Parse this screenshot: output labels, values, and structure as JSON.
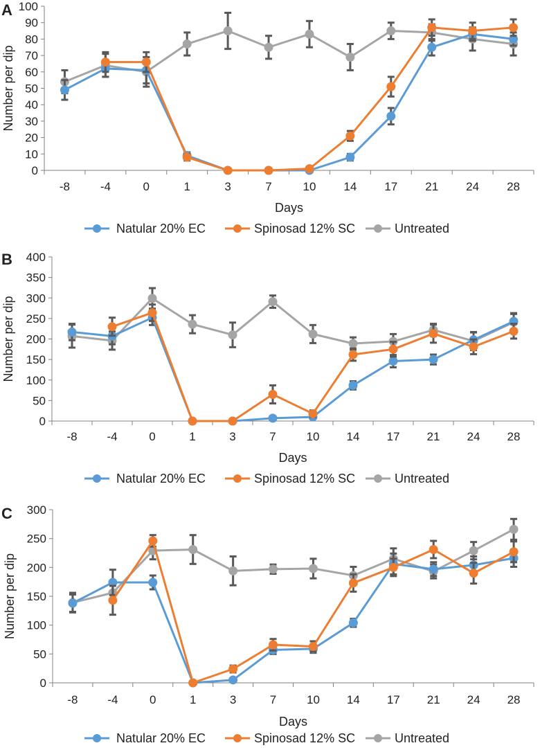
{
  "colors": {
    "blue": "#5B9BD5",
    "orange": "#ED7D31",
    "gray": "#A5A5A5",
    "error_bar": "#595959",
    "axis": "#808080"
  },
  "chart_data": [
    {
      "panel_label": "A",
      "type": "line",
      "categories": [
        "-8",
        "-4",
        "0",
        "1",
        "3",
        "7",
        "10",
        "14",
        "17",
        "21",
        "24",
        "28"
      ],
      "xlabel": "Days",
      "ylabel": "Number per dip",
      "ylim": [
        0,
        100
      ],
      "yticks": [
        0,
        10,
        20,
        30,
        40,
        50,
        60,
        70,
        80,
        90,
        100
      ],
      "legend": "bottom",
      "series": [
        {
          "name": "Natular 20% EC",
          "color": "#5B9BD5",
          "values": [
            49,
            62,
            61,
            9,
            0,
            0,
            0,
            8,
            33,
            75,
            83,
            80
          ],
          "errors": [
            6,
            5,
            8,
            2,
            0,
            0,
            1,
            2,
            5,
            5,
            4,
            4
          ]
        },
        {
          "name": "Spinosad 12% SC",
          "color": "#ED7D31",
          "values": [
            null,
            66,
            66,
            8,
            0,
            0,
            1,
            21,
            51,
            87,
            85,
            87
          ],
          "errors": [
            null,
            6,
            6,
            2,
            0,
            0,
            1,
            3,
            6,
            5,
            5,
            5
          ]
        },
        {
          "name": "Untreated",
          "color": "#A5A5A5",
          "values": [
            54,
            64,
            60,
            77,
            85,
            75,
            83,
            69,
            85,
            84,
            80,
            77
          ],
          "errors": [
            7,
            7,
            9,
            7,
            11,
            7,
            8,
            8,
            5,
            5,
            7,
            7
          ]
        }
      ]
    },
    {
      "panel_label": "B",
      "type": "line",
      "categories": [
        "-8",
        "-4",
        "0",
        "1",
        "3",
        "7",
        "10",
        "14",
        "17",
        "21",
        "24",
        "28"
      ],
      "xlabel": "Days",
      "ylabel": "Number per dip",
      "ylim": [
        0,
        400
      ],
      "yticks": [
        0,
        50,
        100,
        150,
        200,
        250,
        300,
        350,
        400
      ],
      "legend": "bottom",
      "series": [
        {
          "name": "Natular 20% EC",
          "color": "#5B9BD5",
          "values": [
            217,
            207,
            252,
            0,
            0,
            7,
            10,
            87,
            146,
            150,
            198,
            243
          ],
          "errors": [
            20,
            20,
            18,
            0,
            0,
            3,
            4,
            10,
            15,
            12,
            18,
            20
          ]
        },
        {
          "name": "Spinosad 12% SC",
          "color": "#ED7D31",
          "values": [
            null,
            230,
            264,
            0,
            0,
            65,
            18,
            162,
            175,
            213,
            181,
            219
          ],
          "errors": [
            null,
            22,
            20,
            0,
            0,
            22,
            8,
            15,
            18,
            22,
            18,
            18
          ]
        },
        {
          "name": "Untreated",
          "color": "#A5A5A5",
          "values": [
            207,
            196,
            299,
            236,
            210,
            291,
            212,
            189,
            194,
            222,
            195,
            241
          ],
          "errors": [
            28,
            22,
            25,
            22,
            30,
            15,
            22,
            15,
            18,
            15,
            22,
            20
          ]
        }
      ]
    },
    {
      "panel_label": "C",
      "type": "line",
      "categories": [
        "-8",
        "-4",
        "0",
        "1",
        "3",
        "7",
        "10",
        "14",
        "17",
        "21",
        "24",
        "28"
      ],
      "xlabel": "Days",
      "ylabel": "Number per dip",
      "ylim": [
        0,
        300
      ],
      "yticks": [
        0,
        50,
        100,
        150,
        200,
        250,
        300
      ],
      "legend": "bottom",
      "series": [
        {
          "name": "Natular 20% EC",
          "color": "#5B9BD5",
          "values": [
            138,
            174,
            174,
            0,
            5,
            57,
            59,
            104,
            206,
            197,
            204,
            216
          ],
          "errors": [
            15,
            22,
            12,
            0,
            3,
            7,
            7,
            7,
            18,
            12,
            15,
            15
          ]
        },
        {
          "name": "Spinosad 12% SC",
          "color": "#ED7D31",
          "values": [
            null,
            143,
            246,
            0,
            24,
            66,
            63,
            173,
            200,
            231,
            190,
            227
          ],
          "errors": [
            null,
            25,
            10,
            0,
            6,
            10,
            9,
            15,
            15,
            15,
            18,
            18
          ]
        },
        {
          "name": "Untreated",
          "color": "#A5A5A5",
          "values": [
            139,
            156,
            229,
            231,
            194,
            197,
            198,
            186,
            215,
            193,
            229,
            266
          ],
          "errors": [
            17,
            15,
            15,
            25,
            25,
            8,
            17,
            15,
            18,
            12,
            15,
            18
          ]
        }
      ]
    }
  ]
}
